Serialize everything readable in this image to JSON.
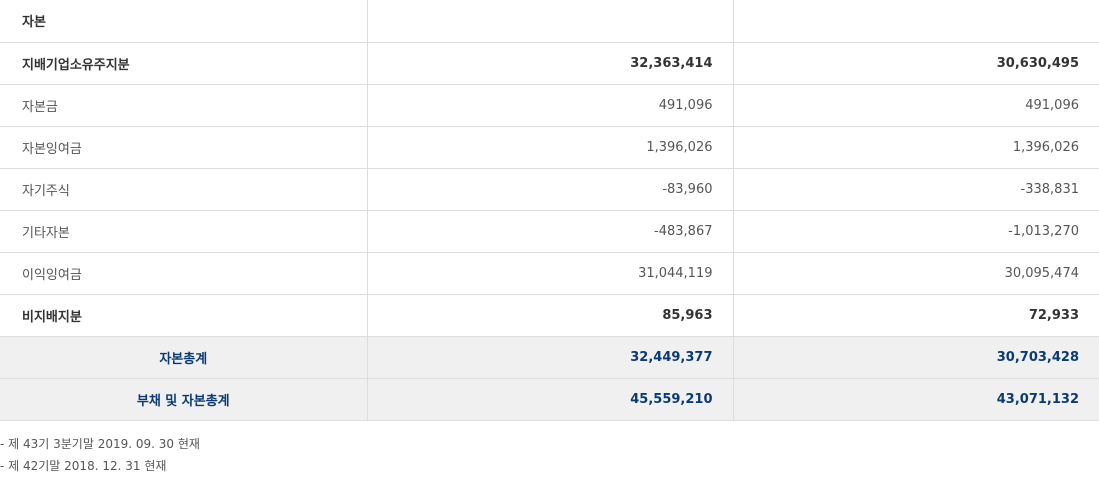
{
  "rows": [
    {
      "label": "자본",
      "v1": "",
      "v2": "",
      "bold": true,
      "total": false
    },
    {
      "label": "지배기업소유주지분",
      "v1": "32,363,414",
      "v2": "30,630,495",
      "bold": true,
      "total": false
    },
    {
      "label": "자본금",
      "v1": "491,096",
      "v2": "491,096",
      "bold": false,
      "total": false
    },
    {
      "label": "자본잉여금",
      "v1": "1,396,026",
      "v2": "1,396,026",
      "bold": false,
      "total": false
    },
    {
      "label": "자기주식",
      "v1": "-83,960",
      "v2": "-338,831",
      "bold": false,
      "total": false
    },
    {
      "label": "기타자본",
      "v1": "-483,867",
      "v2": "-1,013,270",
      "bold": false,
      "total": false
    },
    {
      "label": "이익잉여금",
      "v1": "31,044,119",
      "v2": "30,095,474",
      "bold": false,
      "total": false
    },
    {
      "label": "비지배지분",
      "v1": "85,963",
      "v2": "72,933",
      "bold": true,
      "total": false
    },
    {
      "label": "자본총계",
      "v1": "32,449,377",
      "v2": "30,703,428",
      "bold": true,
      "total": true
    },
    {
      "label": "부채 및 자본총계",
      "v1": "45,559,210",
      "v2": "43,071,132",
      "bold": true,
      "total": true
    }
  ],
  "notes": [
    "- 제 43기 3분기말 2019. 09. 30 현재",
    "- 제 42기말 2018. 12. 31 현재"
  ],
  "colors": {
    "total_text": "#0b3a73",
    "total_bg": "#f0f0f0",
    "border": "#dddddd"
  }
}
